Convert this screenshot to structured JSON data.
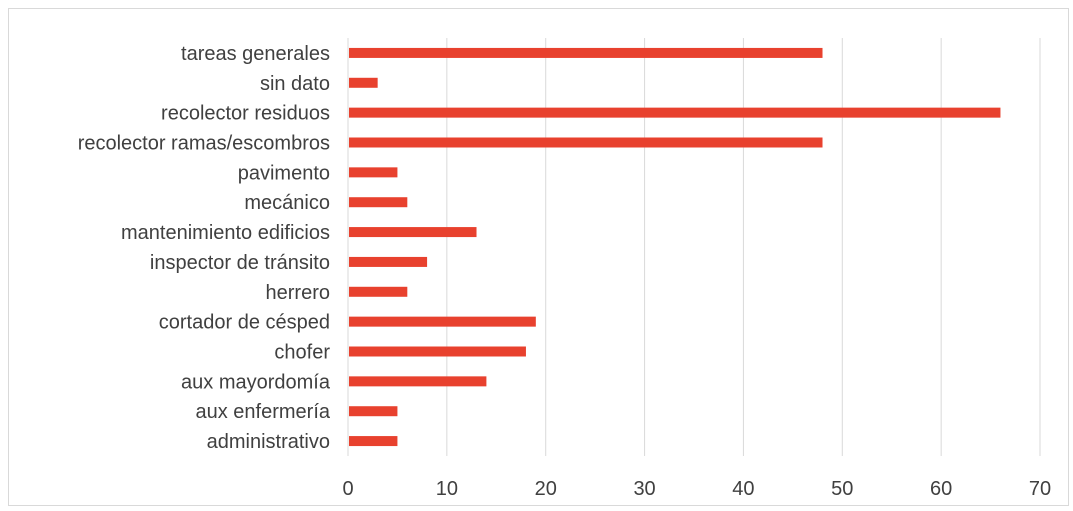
{
  "chart_data": {
    "type": "bar",
    "orientation": "horizontal",
    "categories": [
      "tareas generales",
      "sin dato",
      "recolector residuos",
      "recolector ramas/escombros",
      "pavimento",
      "mecánico",
      "mantenimiento edificios",
      "inspector de tránsito",
      "herrero",
      "cortador de césped",
      "chofer",
      "aux mayordomía",
      "aux enfermería",
      "administrativo"
    ],
    "values": [
      48,
      3,
      66,
      48,
      5,
      6,
      13,
      8,
      6,
      19,
      18,
      14,
      5,
      5
    ],
    "xlim": [
      0,
      70
    ],
    "xticks": [
      "0",
      "10",
      "20",
      "30",
      "40",
      "50",
      "60",
      "70"
    ],
    "title": "",
    "xlabel": "",
    "ylabel": "",
    "grid": "vertical",
    "bar_color": "#e8412e",
    "grid_color": "#d9d9d9",
    "text_color": "#404040"
  }
}
